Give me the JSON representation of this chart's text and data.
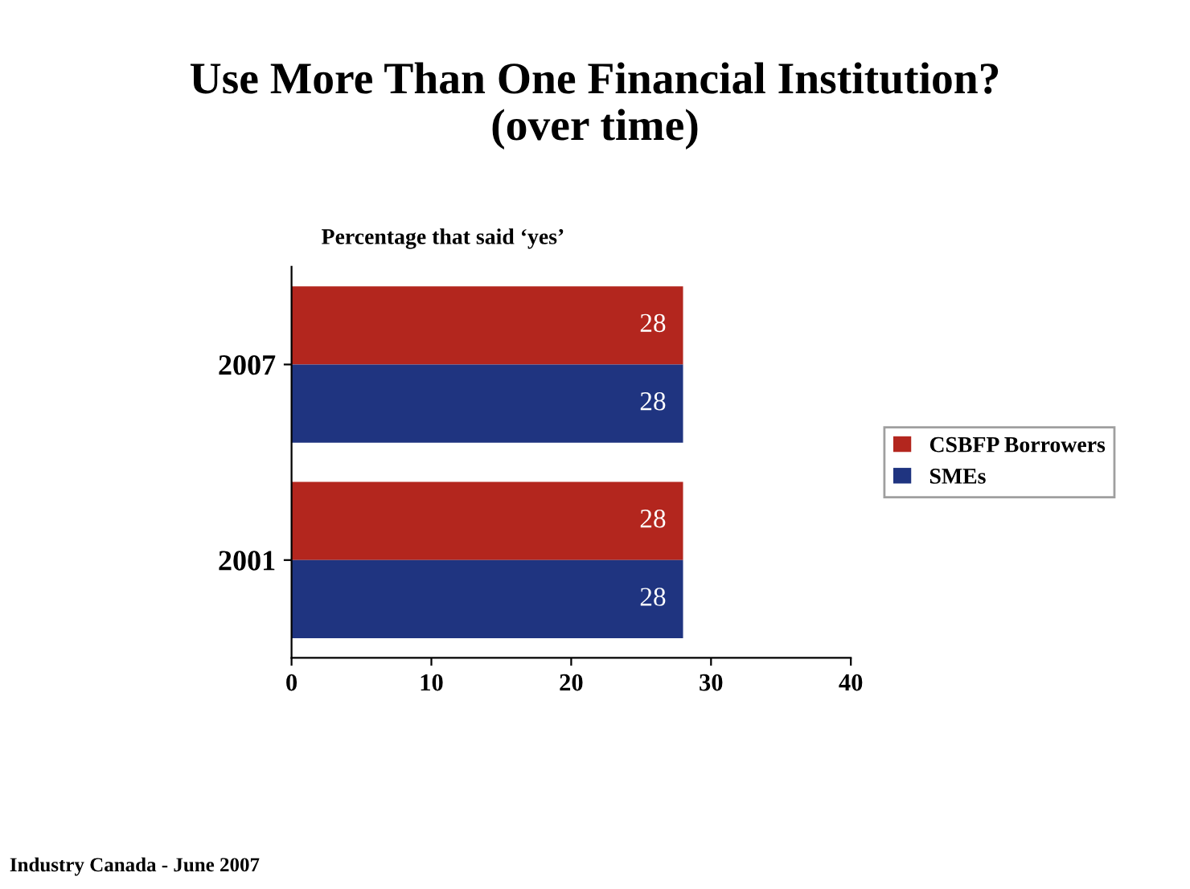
{
  "chart_data": {
    "type": "bar",
    "orientation": "horizontal",
    "title": "Use More Than One Financial Institution?\n(over time)",
    "subtitle": "Percentage that said ‘yes’",
    "categories": [
      "2007",
      "2001"
    ],
    "series": [
      {
        "name": "CSBFP Borrowers",
        "color": "#b3261e",
        "values": [
          28,
          28
        ]
      },
      {
        "name": "SMEs",
        "color": "#1f3480",
        "values": [
          28,
          28
        ]
      }
    ],
    "xlim": [
      0,
      40
    ],
    "xticks": [
      0,
      10,
      20,
      30,
      40
    ],
    "data_labels": true,
    "grid": false,
    "legend": "right",
    "annotations": [
      "Industry Canada - June 2007"
    ]
  }
}
